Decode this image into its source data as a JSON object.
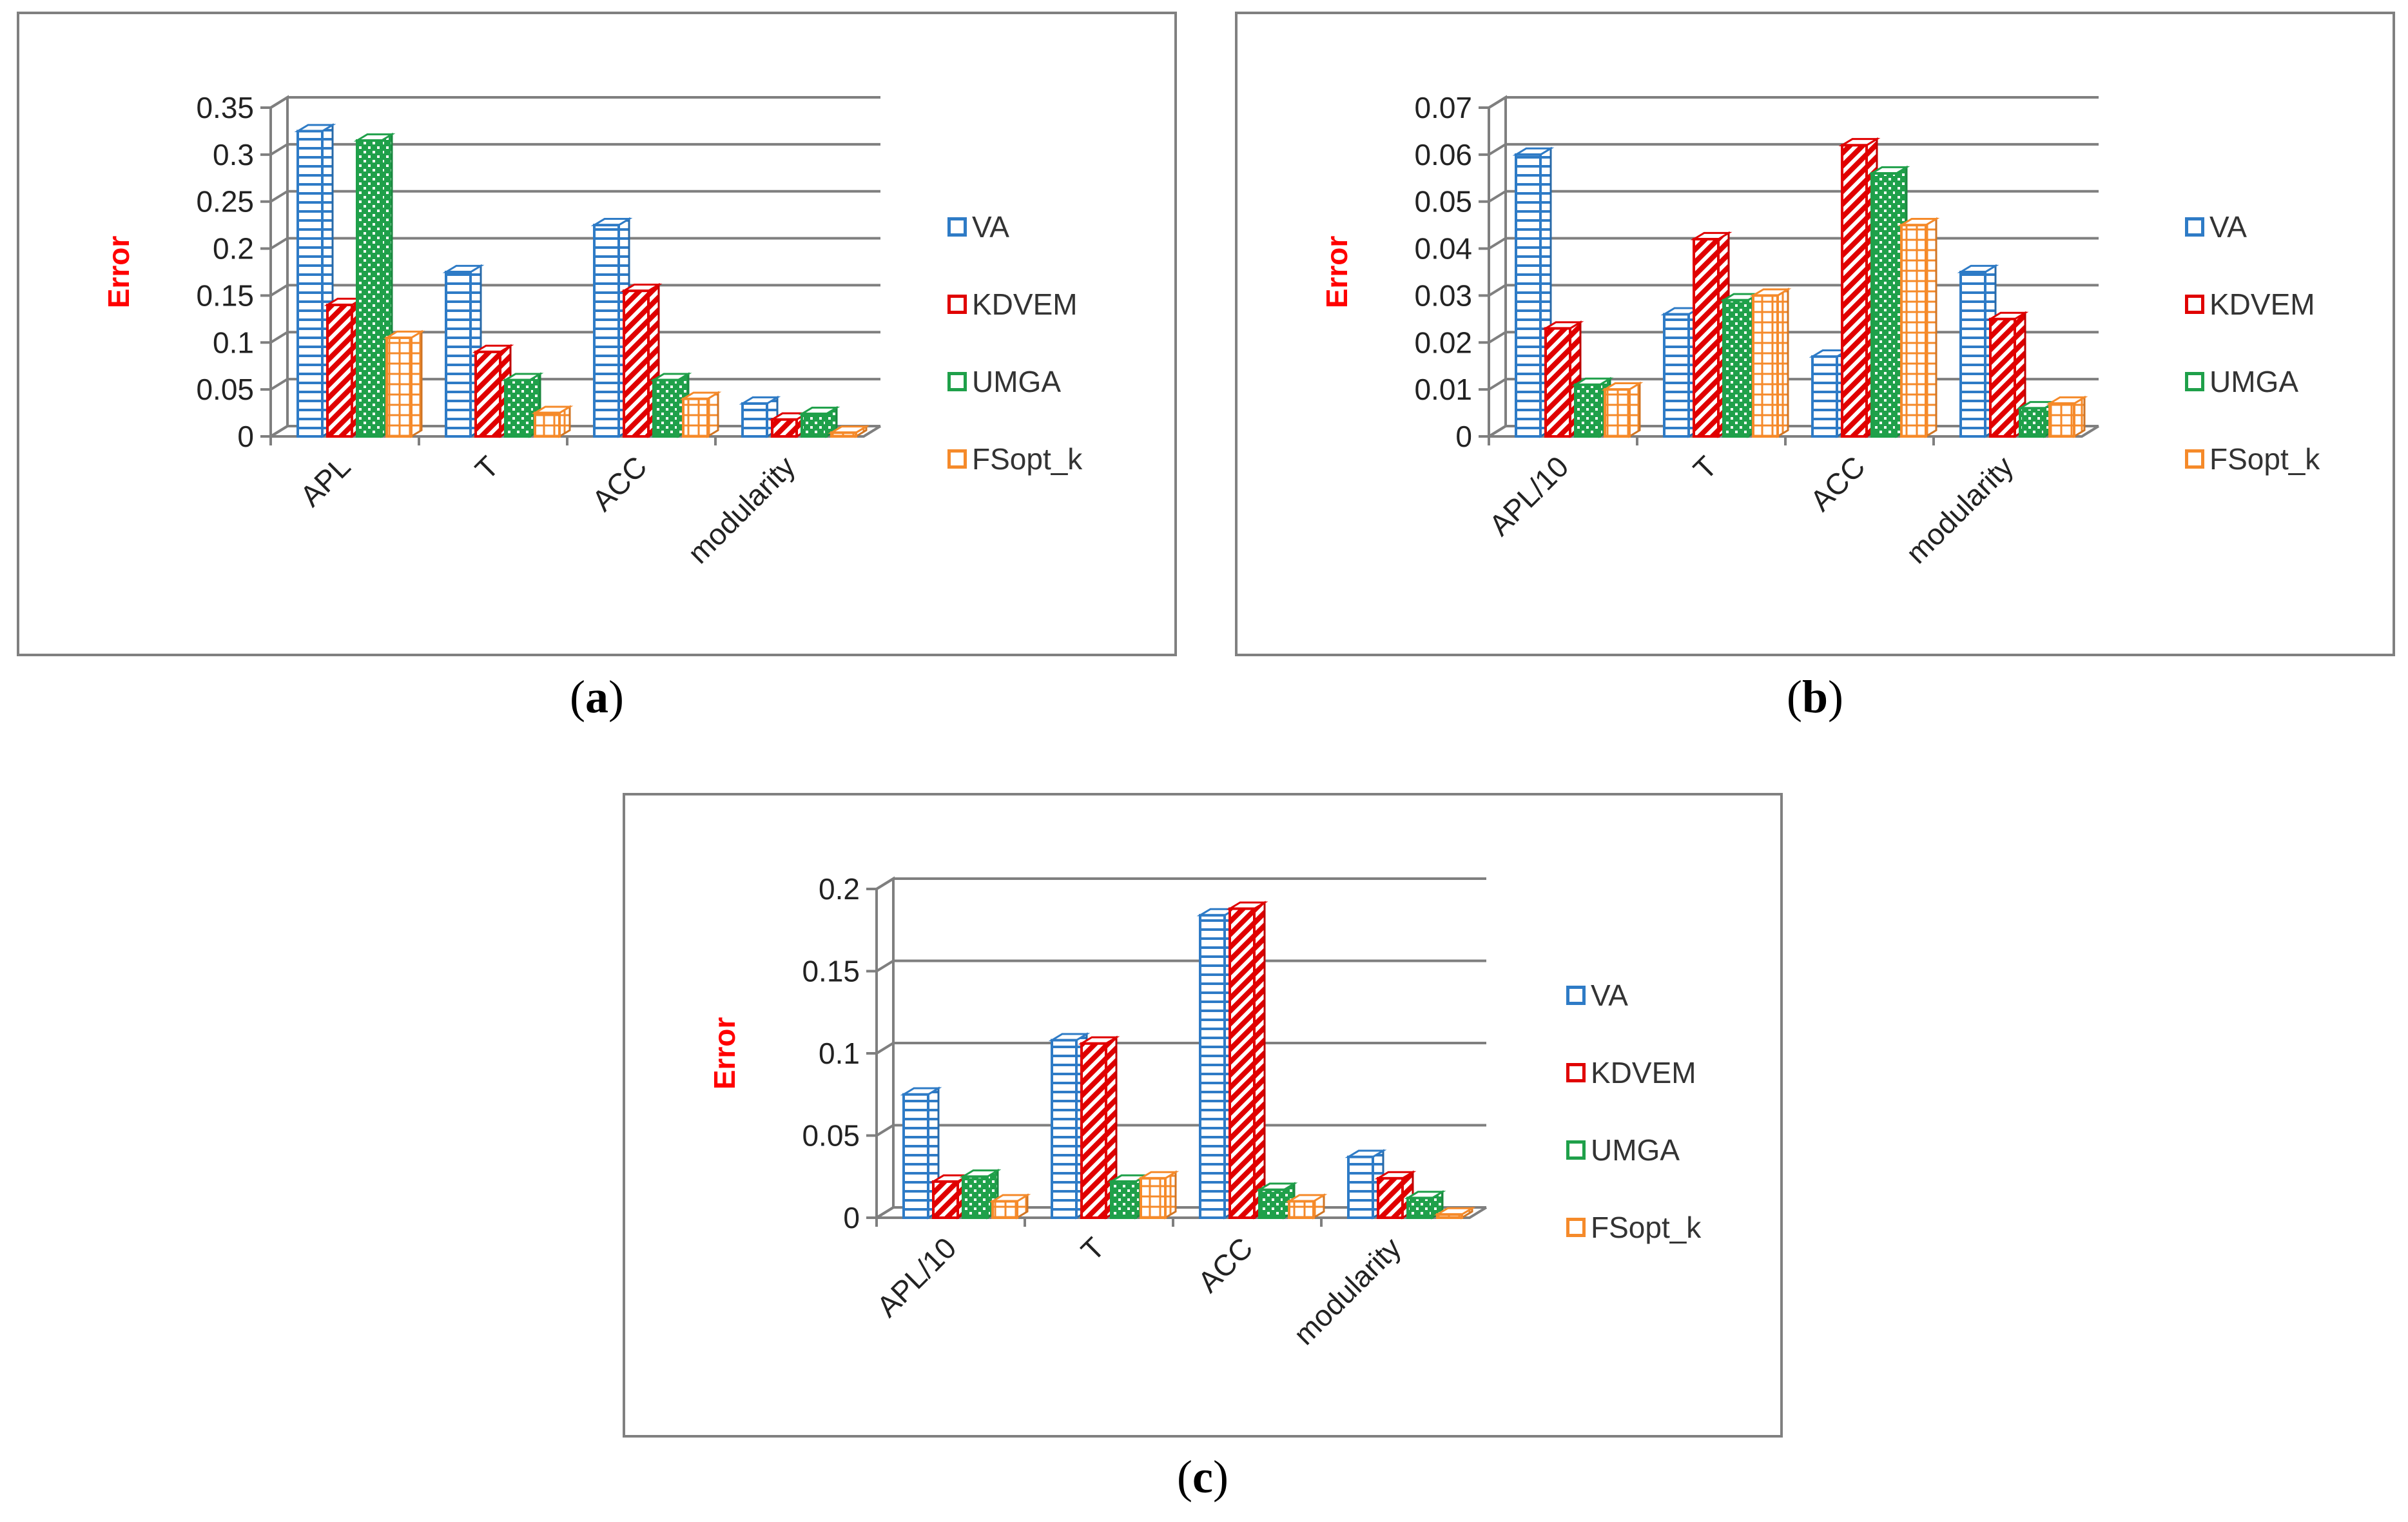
{
  "series_colors": {
    "VA": "#2E7BC6",
    "KDVEM": "#E00000",
    "UMGA": "#1FA04A",
    "FSopt_k": "#F58A2A"
  },
  "chart_data": [
    {
      "type": "bar",
      "caption": "a",
      "ylabel": "Error",
      "ylim": [
        0,
        0.35
      ],
      "yticks": [
        "0",
        "0.05",
        "0.1",
        "0.15",
        "0.2",
        "0.25",
        "0.3",
        "0.35"
      ],
      "categories": [
        "APL",
        "T",
        "ACC",
        "modularity"
      ],
      "series": [
        {
          "name": "VA",
          "values": [
            0.325,
            0.175,
            0.225,
            0.035
          ]
        },
        {
          "name": "KDVEM",
          "values": [
            0.14,
            0.09,
            0.155,
            0.018
          ]
        },
        {
          "name": "UMGA",
          "values": [
            0.315,
            0.06,
            0.06,
            0.024
          ]
        },
        {
          "name": "FSopt_k",
          "values": [
            0.105,
            0.025,
            0.04,
            0.004
          ]
        }
      ]
    },
    {
      "type": "bar",
      "caption": "b",
      "ylabel": "Error",
      "ylim": [
        0,
        0.07
      ],
      "yticks": [
        "0",
        "0.01",
        "0.02",
        "0.03",
        "0.04",
        "0.05",
        "0.06",
        "0.07"
      ],
      "categories": [
        "APL/10",
        "T",
        "ACC",
        "modularity"
      ],
      "series": [
        {
          "name": "VA",
          "values": [
            0.06,
            0.026,
            0.017,
            0.035
          ]
        },
        {
          "name": "KDVEM",
          "values": [
            0.023,
            0.042,
            0.062,
            0.025
          ]
        },
        {
          "name": "UMGA",
          "values": [
            0.011,
            0.029,
            0.056,
            0.006
          ]
        },
        {
          "name": "FSopt_k",
          "values": [
            0.01,
            0.03,
            0.045,
            0.007
          ]
        }
      ]
    },
    {
      "type": "bar",
      "caption": "c",
      "ylabel": "Error",
      "ylim": [
        0,
        0.2
      ],
      "yticks": [
        "0",
        "0.05",
        "0.1",
        "0.15",
        "0.2"
      ],
      "categories": [
        "APL/10",
        "T",
        "ACC",
        "modularity"
      ],
      "series": [
        {
          "name": "VA",
          "values": [
            0.075,
            0.108,
            0.184,
            0.037
          ]
        },
        {
          "name": "KDVEM",
          "values": [
            0.022,
            0.106,
            0.188,
            0.024
          ]
        },
        {
          "name": "UMGA",
          "values": [
            0.025,
            0.022,
            0.017,
            0.012
          ]
        },
        {
          "name": "FSopt_k",
          "values": [
            0.01,
            0.024,
            0.01,
            0.002
          ]
        }
      ]
    }
  ]
}
